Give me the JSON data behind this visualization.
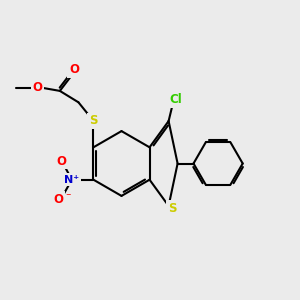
{
  "background_color": "#ebebeb",
  "atom_colors": {
    "C": "#000000",
    "O": "#ff0000",
    "N": "#0000cc",
    "S": "#cccc00",
    "Cl": "#33cc00"
  },
  "figsize": [
    3.0,
    3.0
  ],
  "dpi": 100,
  "lw": 1.5,
  "fs": 8.5
}
